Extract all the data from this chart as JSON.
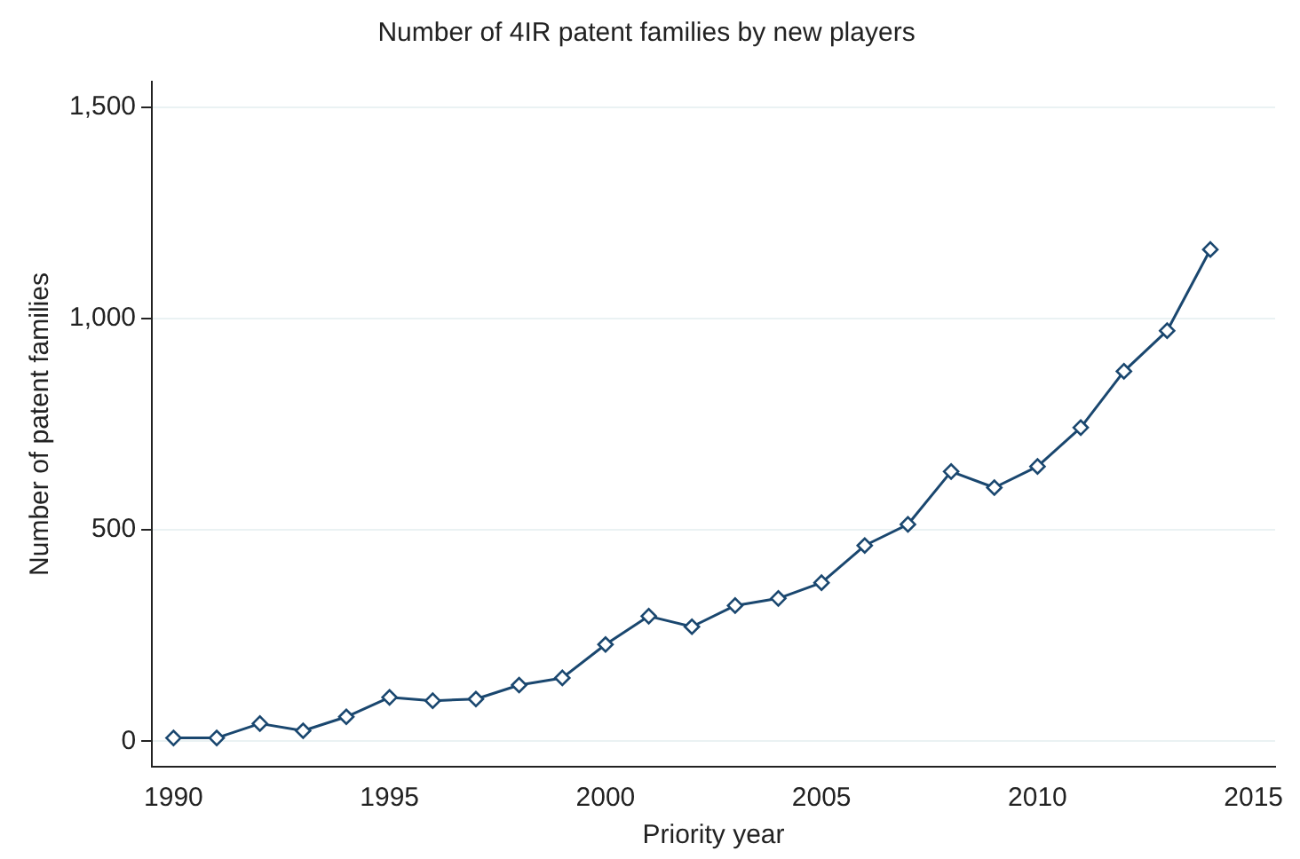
{
  "chart_data": {
    "type": "line",
    "title": "Number of 4IR patent families by new players",
    "xlabel": "Priority year",
    "ylabel": "Number of patent families",
    "x": [
      1990,
      1991,
      1992,
      1993,
      1994,
      1995,
      1996,
      1997,
      1998,
      1999,
      2000,
      2001,
      2002,
      2003,
      2004,
      2005,
      2006,
      2007,
      2008,
      2009,
      2010,
      2011,
      2012,
      2013,
      2014
    ],
    "series": [
      {
        "color": "#1a476f",
        "values": [
          8,
          8,
          42,
          25,
          58,
          104,
          96,
          100,
          133,
          150,
          229,
          296,
          271,
          321,
          338,
          375,
          463,
          513,
          638,
          600,
          650,
          742,
          875,
          971,
          1163
        ]
      }
    ],
    "xlim": [
      1989.5,
      2015.5
    ],
    "xticks": [
      1990,
      1995,
      2000,
      2005,
      2010,
      2015
    ],
    "ylim": [
      -60,
      1560
    ],
    "yticks": [
      0,
      {
        "value": 500,
        "label": "500"
      },
      {
        "value": 1000,
        "label": "1,000"
      },
      {
        "value": 1500,
        "label": "1,500"
      }
    ],
    "grid": "y",
    "legend": false,
    "marker": "diamond",
    "line_style": "solid"
  }
}
